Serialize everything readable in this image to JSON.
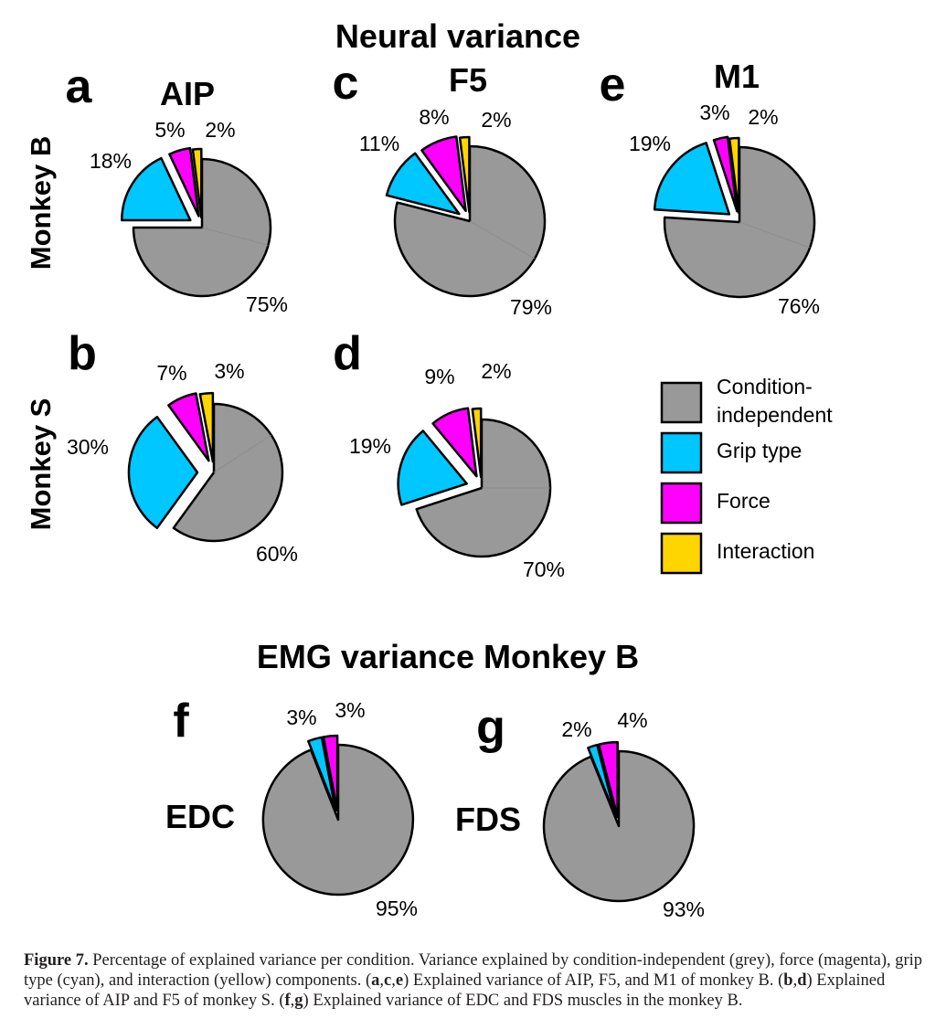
{
  "headings": {
    "neural": "Neural variance",
    "emg": "EMG variance Monkey B"
  },
  "row_labels": {
    "monkey_b": "Monkey B",
    "monkey_s": "Monkey S"
  },
  "colors": {
    "condition_independent": "#999999",
    "grip_type": "#00c7ff",
    "force": "#ff00ff",
    "interaction": "#ffd500",
    "outline": "#000000",
    "divider": "#8a8a8a"
  },
  "legend": [
    {
      "label_lines": [
        "Condition-",
        "independent"
      ],
      "color": "#999999"
    },
    {
      "label_lines": [
        "Grip type"
      ],
      "color": "#00c7ff"
    },
    {
      "label_lines": [
        "Force"
      ],
      "color": "#ff00ff"
    },
    {
      "label_lines": [
        "Interaction"
      ],
      "color": "#ffd500"
    }
  ],
  "chart_data": [
    {
      "type": "pie",
      "panel": "a",
      "title": "AIP",
      "group": "Monkey B",
      "categories": [
        "Condition-independent",
        "Grip type",
        "Force",
        "Interaction"
      ],
      "values": [
        75,
        18,
        5,
        2
      ],
      "labels": [
        "75%",
        "18%",
        "5%",
        "2%"
      ]
    },
    {
      "type": "pie",
      "panel": "c",
      "title": "F5",
      "group": "Monkey B",
      "categories": [
        "Condition-independent",
        "Grip type",
        "Force",
        "Interaction"
      ],
      "values": [
        79,
        11,
        8,
        2
      ],
      "labels": [
        "79%",
        "11%",
        "8%",
        "2%"
      ]
    },
    {
      "type": "pie",
      "panel": "e",
      "title": "M1",
      "group": "Monkey B",
      "categories": [
        "Condition-independent",
        "Grip type",
        "Force",
        "Interaction"
      ],
      "values": [
        76,
        19,
        3,
        2
      ],
      "labels": [
        "76%",
        "19%",
        "3%",
        "2%"
      ]
    },
    {
      "type": "pie",
      "panel": "b",
      "title": "",
      "group": "Monkey S",
      "categories": [
        "Condition-independent",
        "Grip type",
        "Force",
        "Interaction"
      ],
      "values": [
        60,
        30,
        7,
        3
      ],
      "labels": [
        "60%",
        "30%",
        "7%",
        "3%"
      ]
    },
    {
      "type": "pie",
      "panel": "d",
      "title": "",
      "group": "Monkey S",
      "categories": [
        "Condition-independent",
        "Grip type",
        "Force",
        "Interaction"
      ],
      "values": [
        70,
        19,
        9,
        2
      ],
      "labels": [
        "70%",
        "19%",
        "9%",
        "2%"
      ]
    },
    {
      "type": "pie",
      "panel": "f",
      "title": "EDC",
      "group": "EMG variance Monkey B",
      "categories": [
        "Condition-independent",
        "Grip type",
        "Force"
      ],
      "values": [
        95,
        3,
        3
      ],
      "labels": [
        "95%",
        "3%",
        "3%"
      ]
    },
    {
      "type": "pie",
      "panel": "g",
      "title": "FDS",
      "group": "EMG variance Monkey B",
      "categories": [
        "Condition-independent",
        "Grip type",
        "Force"
      ],
      "values": [
        93,
        2,
        4
      ],
      "labels": [
        "93%",
        "2%",
        "4%"
      ]
    }
  ],
  "caption": {
    "label": "Figure 7.",
    "text_parts": [
      "  Percentage of explained variance per condition. Variance explained by condition-independent (grey), force (magenta), grip type (cyan), and interaction (yellow) components. (",
      "a",
      ",",
      "c",
      ",",
      "e",
      ") Explained variance of AIP, F5, and M1 of monkey B. (",
      "b",
      ",",
      "d",
      ") Explained variance of AIP and F5 of monkey S. (",
      "f",
      ",",
      "g",
      ") Explained variance of EDC and FDS muscles in ",
      "the monkey B."
    ]
  }
}
